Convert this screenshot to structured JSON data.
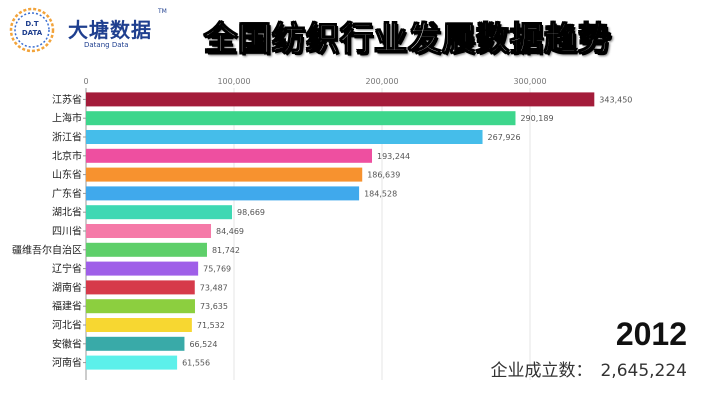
{
  "header": {
    "brand_name": "大塘数据",
    "brand_sub": "Datang Data",
    "badge_line1": "D.T",
    "badge_line2": "DATA",
    "trademark": "TM",
    "title": "全国纺织行业发展数据趋势"
  },
  "summary": {
    "year": "2012",
    "total_label": "企业成立数：",
    "total_value": "2,645,224"
  },
  "chart_data": {
    "type": "bar",
    "orientation": "horizontal",
    "title": "",
    "xlabel": "",
    "ylabel": "",
    "xlim": [
      0,
      350000
    ],
    "x_ticks": [
      0,
      100000,
      200000,
      300000
    ],
    "x_tick_labels": [
      "0",
      "100,000",
      "200,000",
      "300,000"
    ],
    "x_axis_position": "top",
    "grid": true,
    "categories": [
      "江苏省",
      "上海市",
      "浙江省",
      "北京市",
      "山东省",
      "广东省",
      "湖北省",
      "四川省",
      "疆维吾尔自治区",
      "辽宁省",
      "湖南省",
      "福建省",
      "河北省",
      "安徽省",
      "河南省"
    ],
    "values": [
      343450,
      290189,
      267926,
      193244,
      186639,
      184528,
      98669,
      84469,
      81742,
      75769,
      73487,
      73635,
      71532,
      66524,
      61556
    ],
    "value_labels": [
      "343,450",
      "290,189",
      "267,926",
      "193,244",
      "186,639",
      "184,528",
      "98,669",
      "84,469",
      "81,742",
      "75,769",
      "73,487",
      "73,635",
      "71,532",
      "66,524",
      "61,556"
    ],
    "colors": [
      "#a31c3a",
      "#3dd68c",
      "#45bdea",
      "#ee4fa0",
      "#f7922f",
      "#40a9ec",
      "#3ed8b3",
      "#f57aa8",
      "#5ecf6a",
      "#9f5fe8",
      "#d63a4a",
      "#8ccf3f",
      "#f7d731",
      "#39aaa8",
      "#5cf0ea"
    ]
  }
}
